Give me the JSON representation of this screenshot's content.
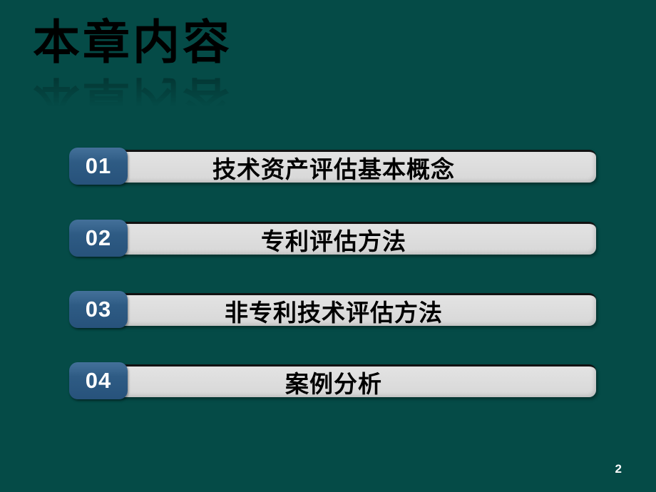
{
  "slide": {
    "title": "本章内容",
    "page_number": "2"
  },
  "items": [
    {
      "number": "01",
      "label": "技术资产评估基本概念"
    },
    {
      "number": "02",
      "label": "专利评估方法"
    },
    {
      "number": "03",
      "label": "非专利技术评估方法"
    },
    {
      "number": "04",
      "label": "案例分析"
    }
  ],
  "colors": {
    "background": "#054b47",
    "badge": "#2e5b84",
    "bar": "#dcdcdc",
    "title_text": "#000000",
    "bar_text": "#000000",
    "badge_text": "#ffffff",
    "page_number_text": "#ffffff"
  }
}
